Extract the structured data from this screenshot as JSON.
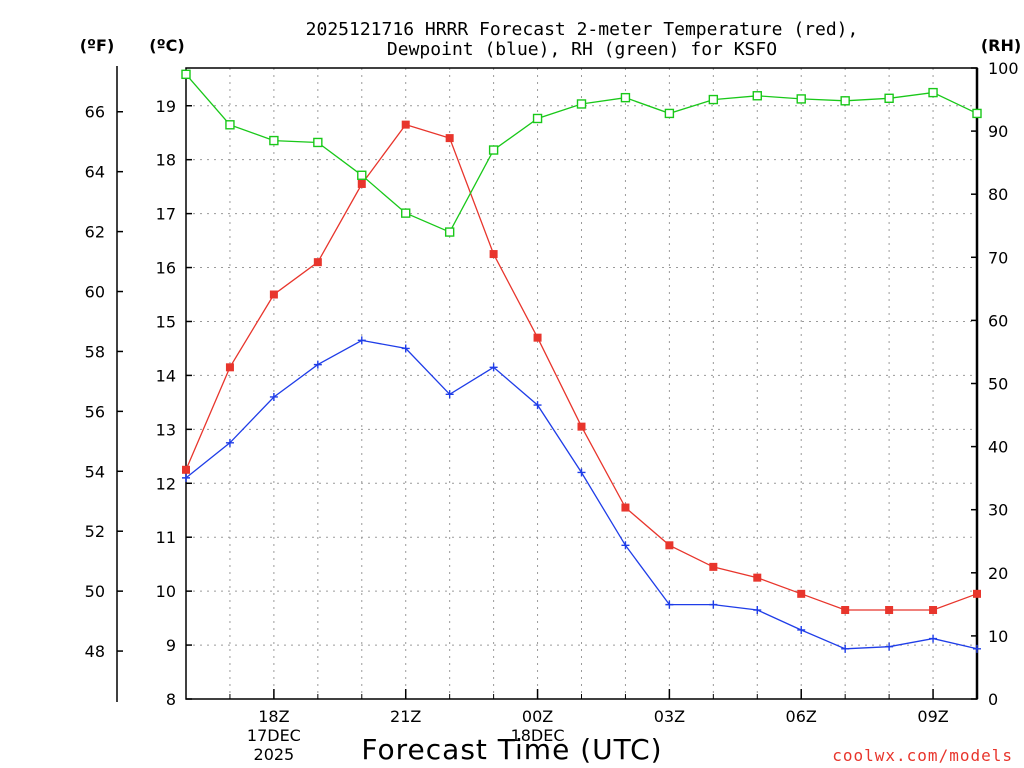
{
  "title_lines": [
    "2025121716 HRRR Forecast 2-meter Temperature (red),",
    "Dewpoint (blue), RH (green) for KSFO"
  ],
  "axis_units": {
    "fahrenheit": "(ºF)",
    "celsius": "(ºC)",
    "rh": "(RH)"
  },
  "x_axis_title": "Forecast Time (UTC)",
  "credit": "coolwx.com/models",
  "colors": {
    "temperature": "#e8352c",
    "dewpoint": "#1f3de8",
    "rh": "#19c819"
  },
  "chart_data": {
    "type": "line",
    "title": "2025121716 HRRR Forecast 2-meter Temperature (red), Dewpoint (blue), RH (green) for KSFO",
    "xlabel": "Forecast Time (UTC)",
    "x_hours": [
      16,
      17,
      18,
      19,
      20,
      21,
      22,
      23,
      24,
      25,
      26,
      27,
      28,
      29,
      30,
      31,
      32,
      33,
      34
    ],
    "xlim": [
      16,
      34
    ],
    "x_ticks": [
      {
        "hour": 18,
        "lines": [
          "18Z",
          "17DEC",
          "2025"
        ]
      },
      {
        "hour": 21,
        "lines": [
          "21Z"
        ]
      },
      {
        "hour": 24,
        "lines": [
          "00Z",
          "18DEC"
        ]
      },
      {
        "hour": 27,
        "lines": [
          "03Z"
        ]
      },
      {
        "hour": 30,
        "lines": [
          "06Z"
        ]
      },
      {
        "hour": 33,
        "lines": [
          "09Z"
        ]
      }
    ],
    "celsius_axis": {
      "label": "(ºC)",
      "range": [
        8,
        19.7
      ],
      "ticks": [
        8,
        9,
        10,
        11,
        12,
        13,
        14,
        15,
        16,
        17,
        18,
        19
      ]
    },
    "fahrenheit_axis": {
      "label": "(ºF)",
      "ticks": [
        48,
        50,
        52,
        54,
        56,
        58,
        60,
        62,
        64,
        66
      ]
    },
    "rh_axis": {
      "label": "(RH)",
      "range": [
        0,
        100
      ],
      "ticks": [
        0,
        10,
        20,
        30,
        40,
        50,
        60,
        70,
        80,
        90,
        100
      ]
    },
    "series": [
      {
        "name": "Temperature",
        "axis": "celsius",
        "color": "#e8352c",
        "marker": "filled-square",
        "values": [
          12.25,
          14.15,
          15.5,
          16.1,
          17.55,
          18.65,
          18.4,
          16.25,
          14.7,
          13.05,
          11.55,
          10.85,
          10.45,
          10.25,
          9.95,
          9.65,
          9.65,
          9.65,
          9.95
        ]
      },
      {
        "name": "Dewpoint",
        "axis": "celsius",
        "color": "#1f3de8",
        "marker": "plus",
        "values": [
          12.1,
          12.75,
          13.6,
          14.2,
          14.65,
          14.5,
          13.65,
          14.15,
          13.45,
          12.2,
          10.85,
          9.75,
          9.75,
          9.65,
          9.28,
          8.93,
          8.97,
          9.12,
          8.93
        ]
      },
      {
        "name": "RH",
        "axis": "rh",
        "color": "#19c819",
        "marker": "open-square",
        "values": [
          99,
          91,
          88.5,
          88.2,
          83,
          77,
          74,
          87,
          92,
          94.3,
          95.3,
          92.8,
          95,
          95.6,
          95.1,
          94.8,
          95.2,
          96.1,
          92.8
        ]
      }
    ]
  }
}
